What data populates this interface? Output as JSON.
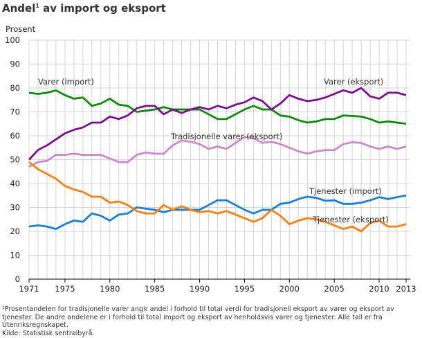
{
  "chart_data": {
    "type": "line",
    "title": "Andel¹ av  import og eksport",
    "ylabel": "Prosent",
    "xlabel": "",
    "ylim": [
      0,
      100
    ],
    "xlim": [
      1971,
      2013
    ],
    "grid": true,
    "yticks": [
      0,
      10,
      20,
      30,
      40,
      50,
      60,
      70,
      80,
      90,
      100
    ],
    "xticks": [
      1971,
      1975,
      1980,
      1985,
      1990,
      1995,
      2000,
      2005,
      2010,
      2013
    ],
    "x": [
      1971,
      1972,
      1973,
      1974,
      1975,
      1976,
      1977,
      1978,
      1979,
      1980,
      1981,
      1982,
      1983,
      1984,
      1985,
      1986,
      1987,
      1988,
      1989,
      1990,
      1991,
      1992,
      1993,
      1994,
      1995,
      1996,
      1997,
      1998,
      1999,
      2000,
      2001,
      2002,
      2003,
      2004,
      2005,
      2006,
      2007,
      2008,
      2009,
      2010,
      2011,
      2012,
      2013
    ],
    "series": [
      {
        "name": "Varer (import)",
        "color": "#0a8a0a",
        "values": [
          78,
          77.5,
          78,
          79,
          77,
          75.5,
          76,
          72.5,
          73.5,
          75.5,
          73,
          72.5,
          70,
          70.5,
          71,
          72,
          71,
          71,
          71,
          71,
          69,
          67,
          67,
          69,
          71,
          72.5,
          71,
          71,
          68.5,
          68,
          66.5,
          65.5,
          66,
          67,
          67,
          68.5,
          68.3,
          68,
          67,
          65.5,
          66,
          65.5,
          65
        ]
      },
      {
        "name": "Varer (eksport)",
        "color": "#7a0f8c",
        "values": [
          50,
          54,
          56,
          58.5,
          61,
          62.5,
          63.5,
          65.5,
          65.5,
          68,
          67,
          68.5,
          71.5,
          72.5,
          72.5,
          69,
          71,
          69.5,
          71,
          72,
          71,
          72.5,
          71.5,
          73,
          74,
          76,
          74.5,
          71,
          73.5,
          77,
          75.5,
          74.5,
          75,
          76,
          77.5,
          79,
          78,
          80,
          76.5,
          75.5,
          78,
          78,
          77
        ]
      },
      {
        "name": "Tradisjonelle varer (eksport)",
        "color": "#cc88cc",
        "values": [
          47,
          49,
          49.5,
          52,
          52,
          52.5,
          52,
          52,
          52,
          50.5,
          49,
          49,
          52,
          53,
          52.5,
          52.5,
          56,
          58,
          57.5,
          56.5,
          54.5,
          55.5,
          54.5,
          57,
          59.5,
          59,
          57,
          57.5,
          56.5,
          55,
          53.5,
          52.5,
          53.5,
          54,
          54,
          56.5,
          57.3,
          57,
          55.5,
          54.5,
          55.5,
          54.5,
          55.5
        ]
      },
      {
        "name": "Tjenester (import)",
        "color": "#1a7fd4",
        "values": [
          22,
          22.5,
          22,
          21,
          23,
          24.5,
          24,
          27.5,
          26.5,
          24.5,
          27,
          27.5,
          30,
          29.5,
          29,
          28,
          29,
          29,
          29,
          29,
          31,
          33,
          33,
          31,
          29,
          27.5,
          29,
          29,
          31.5,
          32,
          33.5,
          34.5,
          34,
          32.8,
          33,
          31.5,
          31.5,
          32,
          33,
          34.3,
          33.5,
          34.3,
          35
        ]
      },
      {
        "name": "Tjenester (eksport)",
        "color": "#ff7f0e",
        "values": [
          49,
          46,
          44,
          42,
          39,
          37.5,
          36.5,
          34.5,
          34.5,
          32,
          32.5,
          31,
          28.5,
          27.5,
          27.5,
          31,
          29,
          30.5,
          29,
          28,
          28.5,
          27.5,
          28.5,
          27,
          25.5,
          24,
          25.5,
          29,
          26.5,
          23,
          24.5,
          25.5,
          25,
          24,
          22.5,
          21,
          22,
          20,
          23.5,
          24.5,
          22,
          22,
          23
        ]
      }
    ]
  },
  "footnote": {
    "lines": [
      "¹Prosentandelen for tradisjonelle varer angir andel i forhold til total verdi for tradisjonell eksport av varer og eksport av tjenester. De andre andelene er i forhold til total import og eksport av henholdsvis varer og tjenester. Alle tall er fra Utenriksregnskapet.",
      "Kilde: Statistisk sentralbyrå."
    ]
  }
}
